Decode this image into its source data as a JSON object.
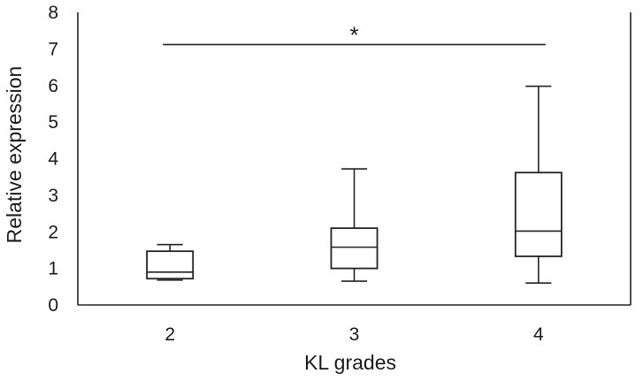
{
  "chart_data": {
    "type": "box",
    "title": "",
    "xlabel": "KL grades",
    "ylabel": "Relative expression",
    "ylim": [
      0,
      8
    ],
    "yticks": [
      0,
      1,
      2,
      3,
      4,
      5,
      6,
      7,
      8
    ],
    "grid": false,
    "legend": "none",
    "categories": [
      "2",
      "3",
      "4"
    ],
    "boxes": [
      {
        "category": "2",
        "whisker_low": 0.68,
        "q1": 0.72,
        "median": 0.9,
        "q3": 1.47,
        "whisker_high": 1.65
      },
      {
        "category": "3",
        "whisker_low": 0.65,
        "q1": 1.0,
        "median": 1.58,
        "q3": 2.1,
        "whisker_high": 3.72
      },
      {
        "category": "4",
        "whisker_low": 0.6,
        "q1": 1.33,
        "median": 2.02,
        "q3": 3.62,
        "whisker_high": 5.98
      }
    ],
    "significance": {
      "from": "2",
      "to": "4",
      "level": 7.12,
      "label": "*"
    }
  }
}
